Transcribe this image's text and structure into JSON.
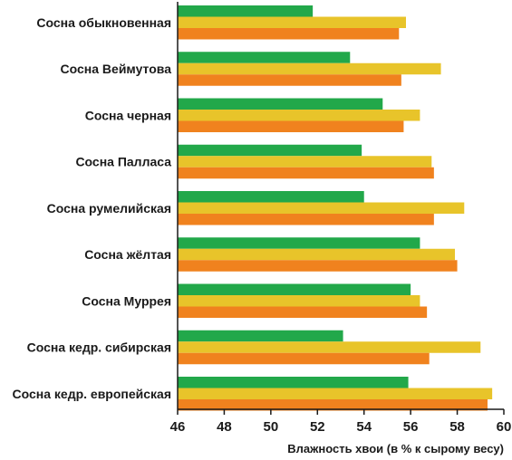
{
  "chart_data": {
    "type": "bar",
    "orientation": "horizontal",
    "categories": [
      "Сосна обыкновенная",
      "Сосна Веймутова",
      "Сосна черная",
      "Сосна Палласа",
      "Сосна румелийская",
      "Сосна жёлтая",
      "Сосна Муррея",
      "Сосна кедр. сибирская",
      "Сосна кедр. европейская"
    ],
    "series": [
      {
        "color": "#22a84a",
        "values": [
          51.8,
          53.4,
          54.8,
          53.9,
          54.0,
          56.4,
          56.0,
          53.1,
          55.9
        ]
      },
      {
        "color": "#e8c42a",
        "values": [
          55.8,
          57.3,
          56.4,
          56.9,
          58.3,
          57.9,
          56.4,
          59.0,
          59.5
        ]
      },
      {
        "color": "#f0821e",
        "values": [
          55.5,
          55.6,
          55.7,
          57.0,
          57.0,
          58.0,
          56.7,
          56.8,
          59.3
        ]
      }
    ],
    "xlim": [
      46,
      60
    ],
    "xticks": [
      "46",
      "48",
      "50",
      "52",
      "54",
      "56",
      "58",
      "60"
    ],
    "xlabel": "Влажность хвои (в % к сырому весу)",
    "grid": false,
    "legend": "none"
  }
}
